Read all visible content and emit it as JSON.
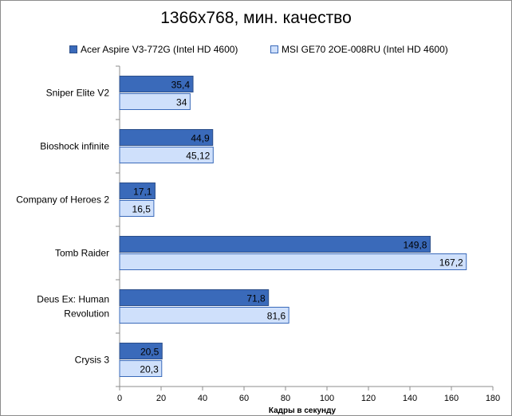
{
  "chart_data": {
    "type": "bar",
    "orientation": "horizontal",
    "title": "1366x768, мин. качество",
    "xlabel": "Кадры  в секунду",
    "ylabel": "",
    "xlim": [
      0,
      180
    ],
    "x_ticks": [
      0,
      20,
      40,
      60,
      80,
      100,
      120,
      140,
      160,
      180
    ],
    "grid": false,
    "legend_position": "top",
    "categories": [
      [
        "Sniper Elite V2"
      ],
      [
        "Bioshock infinite"
      ],
      [
        "Company of Heroes 2"
      ],
      [
        "Tomb Raider"
      ],
      [
        "Deus Ex: Human",
        "Revolution"
      ],
      [
        "Crysis 3"
      ]
    ],
    "series": [
      {
        "name": "Acer Aspire V3-772G (Intel HD 4600)",
        "color": "#3a6aba",
        "values": [
          35.4,
          44.9,
          17.1,
          149.8,
          71.8,
          20.5
        ],
        "labels": [
          "35,4",
          "44,9",
          "17,1",
          "149,8",
          "71,8",
          "20,5"
        ]
      },
      {
        "name": "MSI GE70 2OE-008RU (Intel HD 4600)",
        "color": "#cfe0fb",
        "values": [
          34,
          45.12,
          16.5,
          167.2,
          81.6,
          20.3
        ],
        "labels": [
          "34",
          "45,12",
          "16,5",
          "167,2",
          "81,6",
          "20,3"
        ]
      }
    ]
  }
}
